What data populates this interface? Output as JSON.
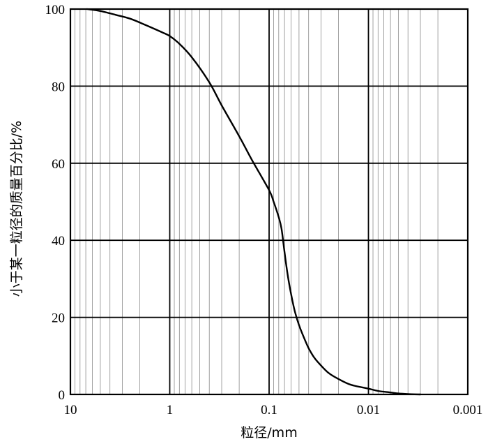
{
  "chart_data": {
    "type": "line",
    "title": "",
    "xlabel": "粒径/mm",
    "ylabel": "小于某一粒径的质量百分比/%",
    "x_scale": "log",
    "x_reversed": true,
    "xlim": [
      10,
      0.001
    ],
    "ylim": [
      0,
      100
    ],
    "grid": true,
    "x_ticks": [
      10,
      1,
      0.1,
      0.01,
      0.001
    ],
    "x_tick_labels": [
      "10",
      "1",
      "0.1",
      "0.01",
      "0.001"
    ],
    "y_ticks": [
      0,
      20,
      40,
      60,
      80,
      100
    ],
    "y_tick_labels": [
      "0",
      "20",
      "40",
      "60",
      "80",
      "100"
    ],
    "series": [
      {
        "color": "#000000",
        "x": [
          6.8,
          5,
          3.5,
          2.5,
          1.8,
          1.2,
          1,
          0.8,
          0.6,
          0.4,
          0.3,
          0.2,
          0.15,
          0.1,
          0.09,
          0.08,
          0.075,
          0.07,
          0.065,
          0.06,
          0.055,
          0.05,
          0.045,
          0.04,
          0.035,
          0.03,
          0.025,
          0.02,
          0.015,
          0.01,
          0.008,
          0.006,
          0.005,
          0.004,
          0.003
        ],
        "y": [
          100,
          99.5,
          98.5,
          97.5,
          96,
          94,
          93,
          91,
          87.5,
          81,
          75,
          67,
          61,
          53,
          50,
          46,
          43,
          37,
          31,
          26,
          21.5,
          18,
          15,
          12,
          9.5,
          7.5,
          5.5,
          4,
          2.5,
          1.5,
          0.9,
          0.5,
          0.25,
          0.1,
          0
        ]
      }
    ]
  }
}
